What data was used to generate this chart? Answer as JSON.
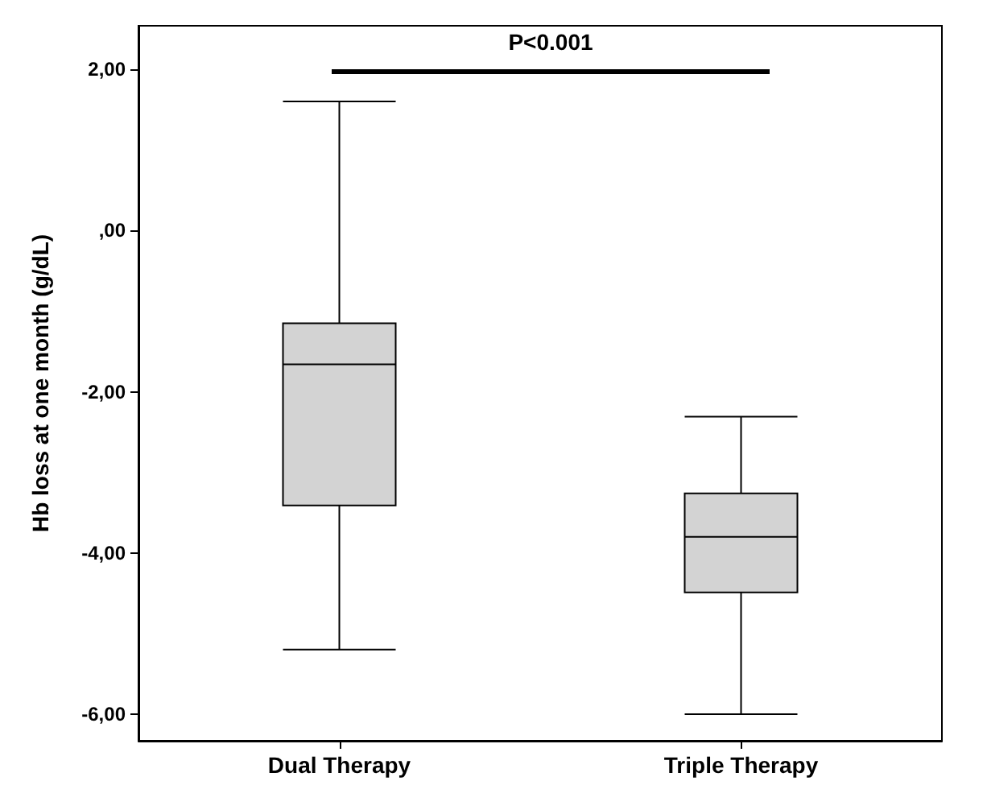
{
  "chart_data": {
    "type": "box",
    "ylabel": "Hb loss at one month (g/dL)",
    "categories": [
      "Dual Therapy",
      "Triple Therapy"
    ],
    "boxes": [
      {
        "low": -5.2,
        "q1": -3.41,
        "median": -1.66,
        "q3": -1.15,
        "high": 1.6
      },
      {
        "low": -6.0,
        "q1": -4.49,
        "median": -3.8,
        "q3": -3.26,
        "high": -2.31
      }
    ],
    "color": "#d3d3d3",
    "ylim": [
      -6.33,
      2.54
    ],
    "yticks": [
      {
        "value": -6,
        "label": "-6,00"
      },
      {
        "value": -4,
        "label": "-4,00"
      },
      {
        "value": -2,
        "label": "-2,00"
      },
      {
        "value": 0,
        "label": ",00"
      },
      {
        "value": 2,
        "label": "2,00"
      }
    ],
    "annotations": [
      "P<0.001"
    ],
    "grid": false
  }
}
